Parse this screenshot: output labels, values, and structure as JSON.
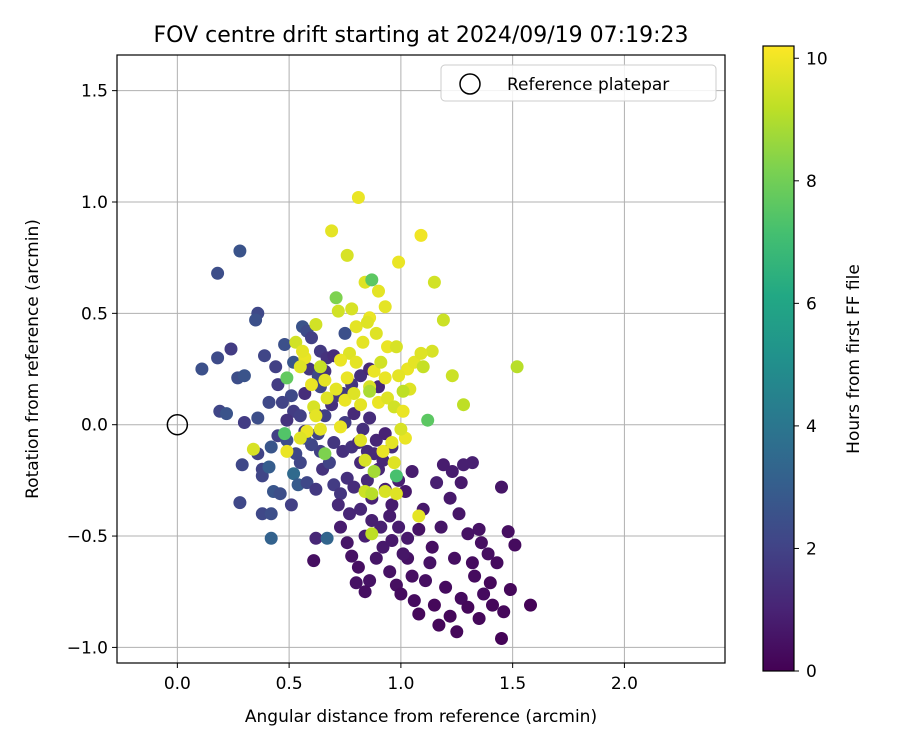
{
  "chart_data": {
    "type": "scatter",
    "title": "FOV centre drift starting at 2024/09/19 07:19:23",
    "xlabel": "Angular distance from reference (arcmin)",
    "ylabel": "Rotation from reference (arcmin)",
    "xlim": [
      -0.27,
      2.45
    ],
    "ylim": [
      -1.07,
      1.66
    ],
    "xticks": [
      0.0,
      0.5,
      1.0,
      1.5,
      2.0
    ],
    "xtick_labels": [
      "0.0",
      "0.5",
      "1.0",
      "1.5",
      "2.0"
    ],
    "yticks": [
      -1.0,
      -0.5,
      0.0,
      0.5,
      1.0,
      1.5
    ],
    "ytick_labels": [
      "−1.0",
      "−0.5",
      "0.0",
      "0.5",
      "1.0",
      "1.5"
    ],
    "grid": true,
    "legend": {
      "placement": "top-right",
      "entries": [
        {
          "label": "Reference platepar",
          "marker": "open-circle"
        }
      ]
    },
    "reference_point": {
      "x": 0.0,
      "y": 0.0
    },
    "colorbar": {
      "label": "Hours from first FF file",
      "colormap": "viridis",
      "range": [
        0,
        10.2
      ],
      "ticks": [
        0,
        2,
        4,
        6,
        8,
        10
      ],
      "tick_labels": [
        "0",
        "2",
        "4",
        "6",
        "8",
        "10"
      ]
    },
    "point_fields": [
      "x",
      "y",
      "hours"
    ],
    "points": [
      [
        0.28,
        0.78,
        2.6
      ],
      [
        0.18,
        0.68,
        2.4
      ],
      [
        0.36,
        0.5,
        2.2
      ],
      [
        0.35,
        0.47,
        2.5
      ],
      [
        0.24,
        0.34,
        1.8
      ],
      [
        0.18,
        0.3,
        2.3
      ],
      [
        0.11,
        0.25,
        2.5
      ],
      [
        0.27,
        0.21,
        2.4
      ],
      [
        0.3,
        0.22,
        2.6
      ],
      [
        0.19,
        0.06,
        2.1
      ],
      [
        0.22,
        0.05,
        2.6
      ],
      [
        0.3,
        0.01,
        1.8
      ],
      [
        0.36,
        0.03,
        2.4
      ],
      [
        0.29,
        -0.18,
        2.2
      ],
      [
        0.36,
        -0.13,
        2.0
      ],
      [
        0.38,
        -0.2,
        2.0
      ],
      [
        0.38,
        -0.23,
        2.1
      ],
      [
        0.42,
        -0.1,
        2.7
      ],
      [
        0.41,
        -0.19,
        3.0
      ],
      [
        0.43,
        -0.3,
        2.7
      ],
      [
        0.46,
        -0.31,
        2.4
      ],
      [
        0.28,
        -0.35,
        2.2
      ],
      [
        0.38,
        -0.4,
        2.2
      ],
      [
        0.42,
        -0.4,
        2.4
      ],
      [
        0.42,
        -0.51,
        3.2
      ],
      [
        0.41,
        0.1,
        2.2
      ],
      [
        0.45,
        0.18,
        1.8
      ],
      [
        0.39,
        0.31,
        2.1
      ],
      [
        0.44,
        0.26,
        1.9
      ],
      [
        0.48,
        0.36,
        2.5
      ],
      [
        0.52,
        0.28,
        2.7
      ],
      [
        0.56,
        0.44,
        2.6
      ],
      [
        0.58,
        0.42,
        2.3
      ],
      [
        0.6,
        0.39,
        1.9
      ],
      [
        0.64,
        0.33,
        1.7
      ],
      [
        0.59,
        0.25,
        1.6
      ],
      [
        0.63,
        0.22,
        2.2
      ],
      [
        0.67,
        0.3,
        1.5
      ],
      [
        0.75,
        0.41,
        2.5
      ],
      [
        0.57,
        0.14,
        1.3
      ],
      [
        0.51,
        0.13,
        2.2
      ],
      [
        0.47,
        0.1,
        2.0
      ],
      [
        0.52,
        0.06,
        1.8
      ],
      [
        0.49,
        0.02,
        1.5
      ],
      [
        0.45,
        -0.05,
        1.9
      ],
      [
        0.49,
        -0.07,
        2.4
      ],
      [
        0.53,
        -0.13,
        2.2
      ],
      [
        0.55,
        -0.17,
        2.1
      ],
      [
        0.57,
        -0.03,
        1.6
      ],
      [
        0.63,
        -0.04,
        2.0
      ],
      [
        0.66,
        0.04,
        1.9
      ],
      [
        0.69,
        0.09,
        1.4
      ],
      [
        0.71,
        0.13,
        1.6
      ],
      [
        0.75,
        0.01,
        1.8
      ],
      [
        0.79,
        0.05,
        1.2
      ],
      [
        0.83,
        -0.02,
        1.4
      ],
      [
        0.86,
        0.03,
        1.3
      ],
      [
        0.89,
        -0.07,
        1.1
      ],
      [
        0.93,
        -0.04,
        1.0
      ],
      [
        0.96,
        -0.1,
        1.3
      ],
      [
        0.52,
        -0.22,
        3.5
      ],
      [
        0.54,
        -0.27,
        2.9
      ],
      [
        0.51,
        -0.36,
        1.9
      ],
      [
        0.58,
        -0.26,
        2.2
      ],
      [
        0.62,
        -0.29,
        1.7
      ],
      [
        0.65,
        -0.2,
        1.5
      ],
      [
        0.68,
        -0.17,
        2.0
      ],
      [
        0.7,
        -0.27,
        1.8
      ],
      [
        0.73,
        -0.31,
        1.6
      ],
      [
        0.76,
        -0.24,
        1.4
      ],
      [
        0.79,
        -0.28,
        1.3
      ],
      [
        0.82,
        -0.17,
        1.2
      ],
      [
        0.85,
        -0.25,
        1.2
      ],
      [
        0.87,
        -0.33,
        1.0
      ],
      [
        0.9,
        -0.2,
        1.1
      ],
      [
        0.93,
        -0.29,
        0.9
      ],
      [
        0.96,
        -0.36,
        0.8
      ],
      [
        0.99,
        -0.25,
        0.9
      ],
      [
        1.02,
        -0.3,
        0.7
      ],
      [
        1.05,
        -0.21,
        0.8
      ],
      [
        0.62,
        -0.51,
        1.1
      ],
      [
        0.67,
        -0.51,
        3.3
      ],
      [
        0.61,
        -0.61,
        0.4
      ],
      [
        0.73,
        -0.46,
        0.8
      ],
      [
        0.76,
        -0.53,
        0.6
      ],
      [
        0.78,
        -0.59,
        0.5
      ],
      [
        0.81,
        -0.64,
        0.4
      ],
      [
        0.84,
        -0.5,
        0.9
      ],
      [
        0.86,
        -0.7,
        0.5
      ],
      [
        0.8,
        -0.71,
        0.5
      ],
      [
        0.84,
        -0.75,
        0.4
      ],
      [
        0.89,
        -0.6,
        0.6
      ],
      [
        0.92,
        -0.55,
        0.7
      ],
      [
        0.95,
        -0.66,
        0.5
      ],
      [
        0.98,
        -0.72,
        0.4
      ],
      [
        1.0,
        -0.76,
        0.3
      ],
      [
        1.03,
        -0.6,
        0.5
      ],
      [
        1.05,
        -0.68,
        0.4
      ],
      [
        1.06,
        -0.79,
        0.3
      ],
      [
        1.08,
        -0.85,
        0.2
      ],
      [
        1.11,
        -0.7,
        0.4
      ],
      [
        1.13,
        -0.62,
        0.5
      ],
      [
        1.15,
        -0.81,
        0.2
      ],
      [
        1.17,
        -0.9,
        0.2
      ],
      [
        1.2,
        -0.73,
        0.3
      ],
      [
        1.22,
        -0.86,
        0.2
      ],
      [
        1.25,
        -0.93,
        0.2
      ],
      [
        1.27,
        -0.78,
        0.3
      ],
      [
        1.3,
        -0.82,
        0.2
      ],
      [
        1.33,
        -0.68,
        0.3
      ],
      [
        1.35,
        -0.87,
        0.2
      ],
      [
        1.37,
        -0.76,
        0.3
      ],
      [
        1.4,
        -0.71,
        0.2
      ],
      [
        1.41,
        -0.81,
        0.2
      ],
      [
        1.45,
        -0.96,
        0.1
      ],
      [
        1.46,
        -0.84,
        0.2
      ],
      [
        1.49,
        -0.74,
        0.2
      ],
      [
        1.51,
        -0.54,
        0.3
      ],
      [
        1.48,
        -0.48,
        0.4
      ],
      [
        1.45,
        -0.28,
        0.6
      ],
      [
        1.58,
        -0.81,
        0.1
      ],
      [
        1.35,
        -0.47,
        0.5
      ],
      [
        1.3,
        -0.49,
        0.5
      ],
      [
        1.26,
        -0.4,
        0.6
      ],
      [
        1.22,
        -0.33,
        0.7
      ],
      [
        1.18,
        -0.46,
        0.6
      ],
      [
        1.14,
        -0.55,
        0.4
      ],
      [
        1.1,
        -0.38,
        0.7
      ],
      [
        1.08,
        -0.47,
        0.5
      ],
      [
        1.16,
        -0.26,
        0.9
      ],
      [
        1.19,
        -0.18,
        0.8
      ],
      [
        1.23,
        -0.21,
        0.8
      ],
      [
        1.28,
        -0.18,
        0.9
      ],
      [
        1.32,
        -0.17,
        0.9
      ],
      [
        1.27,
        -0.26,
        0.7
      ],
      [
        1.36,
        -0.53,
        0.4
      ],
      [
        1.39,
        -0.58,
        0.4
      ],
      [
        1.43,
        -0.62,
        0.3
      ],
      [
        1.32,
        -0.62,
        0.3
      ],
      [
        1.24,
        -0.6,
        0.4
      ],
      [
        0.72,
        -0.36,
        1.2
      ],
      [
        0.77,
        -0.4,
        1.1
      ],
      [
        0.82,
        -0.38,
        1.1
      ],
      [
        0.87,
        -0.43,
        0.9
      ],
      [
        0.91,
        -0.46,
        0.9
      ],
      [
        0.95,
        -0.41,
        0.8
      ],
      [
        0.99,
        -0.46,
        0.8
      ],
      [
        1.03,
        -0.51,
        0.7
      ],
      [
        0.96,
        -0.52,
        0.7
      ],
      [
        1.01,
        -0.58,
        0.6
      ],
      [
        0.7,
        -0.08,
        1.6
      ],
      [
        0.74,
        -0.12,
        1.4
      ],
      [
        0.78,
        -0.1,
        1.5
      ],
      [
        0.81,
        -0.08,
        1.3
      ],
      [
        0.85,
        -0.12,
        1.3
      ],
      [
        0.88,
        -0.13,
        1.2
      ],
      [
        0.92,
        -0.16,
        1.1
      ],
      [
        0.64,
        -0.12,
        1.9
      ],
      [
        0.6,
        -0.09,
        2.1
      ],
      [
        0.57,
        -0.06,
        2.3
      ],
      [
        0.74,
        0.14,
        1.7
      ],
      [
        0.78,
        0.18,
        1.6
      ],
      [
        0.82,
        0.22,
        1.4
      ],
      [
        0.86,
        0.25,
        1.2
      ],
      [
        0.9,
        0.17,
        1.1
      ],
      [
        0.64,
        0.17,
        2.1
      ],
      [
        0.66,
        0.24,
        1.5
      ],
      [
        0.7,
        0.31,
        1.3
      ],
      [
        0.62,
        0.05,
        1.7
      ],
      [
        0.55,
        0.04,
        1.9
      ],
      [
        0.81,
        1.02,
        9.9
      ],
      [
        0.69,
        0.87,
        9.8
      ],
      [
        0.76,
        0.76,
        9.6
      ],
      [
        0.84,
        0.64,
        9.7
      ],
      [
        0.87,
        0.65,
        7.6
      ],
      [
        0.9,
        0.6,
        9.8
      ],
      [
        0.99,
        0.73,
        9.9
      ],
      [
        1.09,
        0.85,
        10.0
      ],
      [
        1.15,
        0.64,
        9.5
      ],
      [
        1.19,
        0.47,
        9.4
      ],
      [
        0.93,
        0.53,
        9.8
      ],
      [
        0.86,
        0.48,
        9.9
      ],
      [
        0.78,
        0.52,
        9.6
      ],
      [
        0.72,
        0.51,
        9.5
      ],
      [
        0.71,
        0.57,
        8.2
      ],
      [
        0.8,
        0.44,
        9.8
      ],
      [
        0.89,
        0.41,
        9.7
      ],
      [
        0.94,
        0.35,
        9.9
      ],
      [
        0.98,
        0.35,
        9.6
      ],
      [
        1.03,
        0.25,
        9.9
      ],
      [
        1.06,
        0.28,
        9.8
      ],
      [
        1.1,
        0.26,
        9.3
      ],
      [
        1.14,
        0.33,
        9.6
      ],
      [
        1.09,
        0.32,
        9.7
      ],
      [
        1.23,
        0.22,
        9.4
      ],
      [
        1.28,
        0.09,
        9.2
      ],
      [
        1.52,
        0.26,
        9.1
      ],
      [
        1.12,
        0.02,
        7.6
      ],
      [
        0.88,
        0.24,
        9.9
      ],
      [
        0.83,
        0.37,
        9.8
      ],
      [
        0.77,
        0.32,
        9.7
      ],
      [
        0.73,
        0.29,
        9.9
      ],
      [
        0.66,
        0.2,
        9.8
      ],
      [
        0.62,
        0.45,
        9.5
      ],
      [
        0.57,
        0.3,
        9.9
      ],
      [
        0.55,
        0.26,
        9.7
      ],
      [
        0.53,
        0.37,
        9.5
      ],
      [
        0.56,
        0.33,
        9.8
      ],
      [
        0.6,
        0.18,
        9.9
      ],
      [
        0.61,
        0.08,
        9.6
      ],
      [
        0.62,
        0.04,
        9.8
      ],
      [
        0.64,
        -0.02,
        9.8
      ],
      [
        0.58,
        -0.03,
        9.9
      ],
      [
        0.55,
        -0.06,
        9.7
      ],
      [
        0.49,
        -0.12,
        9.9
      ],
      [
        0.34,
        -0.11,
        9.6
      ],
      [
        0.49,
        0.21,
        7.7
      ],
      [
        0.48,
        -0.04,
        7.4
      ],
      [
        0.64,
        0.26,
        9.3
      ],
      [
        0.67,
        0.12,
        9.7
      ],
      [
        0.71,
        0.16,
        9.8
      ],
      [
        0.75,
        0.11,
        9.9
      ],
      [
        0.79,
        0.14,
        9.7
      ],
      [
        0.82,
        0.09,
        9.8
      ],
      [
        0.86,
        0.17,
        9.6
      ],
      [
        0.9,
        0.1,
        9.9
      ],
      [
        0.94,
        0.12,
        9.7
      ],
      [
        0.97,
        0.08,
        9.5
      ],
      [
        1.01,
        0.06,
        9.9
      ],
      [
        0.99,
        0.22,
        9.8
      ],
      [
        1.04,
        0.16,
        9.7
      ],
      [
        1.02,
        -0.06,
        9.9
      ],
      [
        1.0,
        -0.02,
        9.6
      ],
      [
        0.96,
        -0.08,
        9.8
      ],
      [
        0.92,
        -0.12,
        9.9
      ],
      [
        0.82,
        -0.07,
        9.7
      ],
      [
        0.73,
        -0.01,
        9.9
      ],
      [
        0.84,
        -0.3,
        9.4
      ],
      [
        0.87,
        -0.31,
        9.1
      ],
      [
        0.93,
        -0.3,
        9.6
      ],
      [
        0.98,
        -0.31,
        9.7
      ],
      [
        1.08,
        -0.41,
        9.8
      ],
      [
        0.87,
        -0.49,
        9.2
      ],
      [
        0.84,
        -0.16,
        9.6
      ],
      [
        0.88,
        -0.21,
        8.8
      ],
      [
        0.97,
        -0.17,
        9.7
      ],
      [
        0.66,
        -0.13,
        8.2
      ],
      [
        0.98,
        -0.23,
        7.2
      ],
      [
        0.86,
        0.15,
        8.9
      ],
      [
        1.01,
        0.15,
        9.2
      ],
      [
        0.91,
        0.28,
        9.5
      ],
      [
        0.8,
        0.28,
        9.8
      ],
      [
        0.76,
        0.21,
        9.9
      ],
      [
        0.85,
        0.46,
        9.7
      ],
      [
        0.93,
        0.21,
        9.9
      ]
    ]
  }
}
